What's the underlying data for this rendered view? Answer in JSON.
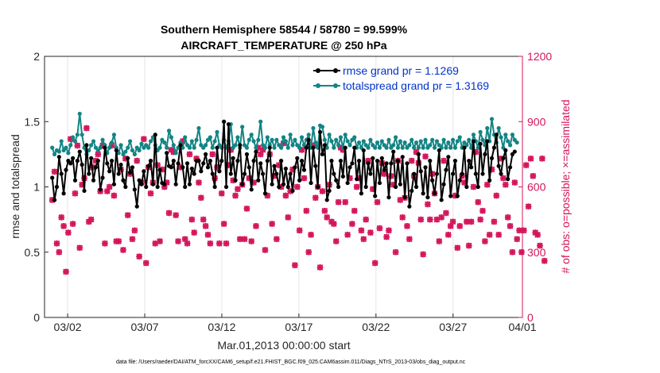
{
  "chart_data": {
    "type": "line",
    "title": "Southern Hemisphere 58544 / 58780 = 99.599%",
    "subtitle": "AIRCRAFT_TEMPERATURE @ 250 hPa",
    "xlabel": "Mar.01,2013 00:00:00 start",
    "ylabel_left": "rmse and totalspread",
    "ylabel_right": "# of obs: o=possible; ×=assimilated",
    "footnote": "data file: /Users/raeder/DAI/ATM_forcXX/CAM6_setup/f.e21.FHIST_BGC.f09_025.CAM6assim.011/Diags_NTrS_2013-03/obs_diag_output.nc",
    "xlim": [
      0.5,
      31.5
    ],
    "ylim_left": [
      0,
      2
    ],
    "ylim_right": [
      0,
      1200
    ],
    "xtick_labels": [
      "03/02",
      "03/07",
      "03/12",
      "03/17",
      "03/22",
      "03/27",
      "04/01"
    ],
    "xtick_values": [
      2,
      7,
      12,
      17,
      22,
      27,
      32
    ],
    "ytick_labels_left": [
      "0",
      "0.5",
      "1",
      "1.5",
      "2"
    ],
    "ytick_values_left": [
      0,
      0.5,
      1,
      1.5,
      2
    ],
    "ytick_labels_right": [
      "0",
      "300",
      "600",
      "900",
      "1200"
    ],
    "ytick_values_right": [
      0,
      300,
      600,
      900,
      1200
    ],
    "grid": "x-only",
    "legend_position": "top-right",
    "colors": {
      "rmse": "#000000",
      "spread": "#138484",
      "obs": "#d4145a",
      "title": "#000000",
      "legend_text": "#0033cc"
    },
    "series": [
      {
        "name": "rmse grand pr = 1.1269",
        "axis": "left",
        "values": [
          1.07,
          0.9,
          1.0,
          1.23,
          1.1,
          0.95,
          1.13,
          1.2,
          1.18,
          1.22,
          1.05,
          1.2,
          1.27,
          1.17,
          0.97,
          1.32,
          1.1,
          1.22,
          1.05,
          1.15,
          1.2,
          0.98,
          1.07,
          1.3,
          1.18,
          1.12,
          1.2,
          1.02,
          1.28,
          1.1,
          1.17,
          1.05,
          1.0,
          1.22,
          1.11,
          1.15,
          0.98,
          0.85,
          1.05,
          1.02,
          1.12,
          1.0,
          1.16,
          1.2,
          1.02,
          1.4,
          1.0,
          1.13,
          1.03,
          1.02,
          1.26,
          1.16,
          1.15,
          1.2,
          1.02,
          1.18,
          1.32,
          1.15,
          1.0,
          1.18,
          1.02,
          1.14,
          1.1,
          1.2,
          1.2,
          1.12,
          1.18,
          1.25,
          1.15,
          1.2,
          1.1,
          1.0,
          1.3,
          1.12,
          1.2,
          1.5,
          1.0,
          1.48,
          1.1,
          1.22,
          1.05,
          1.2,
          1.32,
          1.02,
          1.1,
          1.25,
          1.15,
          0.98,
          1.2,
          1.27,
          1.05,
          1.18,
          1.1,
          0.95,
          1.2,
          1.3,
          1.02,
          1.16,
          1.1,
          1.0,
          1.2,
          1.02,
          1.14,
          1.0,
          1.1,
          0.97,
          1.15,
          1.22,
          1.05,
          1.2,
          1.13,
          1.3,
          1.36,
          1.03,
          1.3,
          1.16,
          1.0,
          1.42,
          1.25,
          1.32,
          0.9,
          0.97,
          1.2,
          1.1,
          1.05,
          1.0,
          1.2,
          1.08,
          1.3,
          1.03,
          1.15,
          1.18,
          1.3,
          1.06,
          1.2,
          0.95,
          1.28,
          1.0,
          1.18,
          1.1,
          1.22,
          0.93,
          1.2,
          1.03,
          1.22,
          1.13,
          1.18,
          0.92,
          1.18,
          1.27,
          1.0,
          1.2,
          1.02,
          1.23,
          0.92,
          1.18,
          0.85,
          0.97,
          1.1,
          1.0,
          1.25,
          1.12,
          0.95,
          1.15,
          0.92,
          1.2,
          1.05,
          0.95,
          1.1,
          1.28,
          0.9,
          1.02,
          1.13,
          1.23,
          0.93,
          1.1,
          1.2,
          0.93,
          1.05,
          1.1,
          1.3,
          1.0,
          1.2,
          1.15,
          1.35,
          1.1,
          1.0,
          1.33,
          1.1,
          1.25,
          1.35,
          1.05,
          1.22,
          1.3,
          1.4,
          1.16,
          1.1,
          1.22,
          1.28,
          1.06,
          1.15,
          1.25,
          1.27
        ]
      },
      {
        "name": "totalspread grand pr = 1.3169",
        "axis": "left",
        "values": [
          1.3,
          1.25,
          1.28,
          1.27,
          1.35,
          1.28,
          1.3,
          1.26,
          1.32,
          1.38,
          1.35,
          1.4,
          1.56,
          1.4,
          1.3,
          1.25,
          1.28,
          1.32,
          1.35,
          1.3,
          1.28,
          1.3,
          1.36,
          1.32,
          1.26,
          1.3,
          1.34,
          1.4,
          1.3,
          1.26,
          1.32,
          1.25,
          1.27,
          1.3,
          1.35,
          1.28,
          1.25,
          1.3,
          1.28,
          1.33,
          1.3,
          1.32,
          1.3,
          1.35,
          1.38,
          1.32,
          1.28,
          1.3,
          1.36,
          1.34,
          1.3,
          1.43,
          1.38,
          1.32,
          1.26,
          1.3,
          1.34,
          1.3,
          1.38,
          1.32,
          1.3,
          1.35,
          1.3,
          1.36,
          1.45,
          1.32,
          1.3,
          1.32,
          1.36,
          1.38,
          1.3,
          1.35,
          1.42,
          1.32,
          1.3,
          1.36,
          1.3,
          1.35,
          1.48,
          1.3,
          1.32,
          1.38,
          1.3,
          1.46,
          1.32,
          1.3,
          1.36,
          1.4,
          1.35,
          1.3,
          1.36,
          1.5,
          1.32,
          1.3,
          1.38,
          1.32,
          1.36,
          1.3,
          1.36,
          1.32,
          1.3,
          1.38,
          1.35,
          1.3,
          1.4,
          1.32,
          1.36,
          1.32,
          1.3,
          1.38,
          1.32,
          1.36,
          1.4,
          1.3,
          1.45,
          1.34,
          1.3,
          1.47,
          1.46,
          1.36,
          1.3,
          1.4,
          1.35,
          1.3,
          1.36,
          1.32,
          1.38,
          1.3,
          1.4,
          1.35,
          1.32,
          1.36,
          1.38,
          1.3,
          1.34,
          1.3,
          1.35,
          1.32,
          1.3,
          1.36,
          1.32,
          1.3,
          1.34,
          1.3,
          1.35,
          1.32,
          1.3,
          1.36,
          1.3,
          1.32,
          1.38,
          1.3,
          1.35,
          1.3,
          1.34,
          1.3,
          1.32,
          1.36,
          1.3,
          1.34,
          1.3,
          1.35,
          1.3,
          1.36,
          1.3,
          1.32,
          1.36,
          1.3,
          1.35,
          1.32,
          1.3,
          1.36,
          1.3,
          1.34,
          1.3,
          1.36,
          1.3,
          1.35,
          1.38,
          1.3,
          1.34,
          1.32,
          1.36,
          1.3,
          1.4,
          1.35,
          1.3,
          1.42,
          1.36,
          1.32,
          1.45,
          1.35,
          1.52,
          1.4,
          1.34,
          1.45,
          1.38,
          1.3,
          1.4,
          1.35,
          1.32,
          1.4,
          1.36,
          1.34
        ]
      },
      {
        "name": "# of obs assimilated",
        "axis": "right",
        "values": [
          540,
          670,
          340,
          300,
          460,
          420,
          210,
          390,
          820,
          430,
          570,
          790,
          320,
          610,
          640,
          870,
          440,
          450,
          690,
          720,
          750,
          580,
          790,
          340,
          580,
          600,
          790,
          560,
          350,
          350,
          680,
          310,
          730,
          470,
          660,
          360,
          400,
          720,
          280,
          620,
          820,
          250,
          690,
          570,
          620,
          340,
          700,
          350,
          680,
          600,
          620,
          480,
          770,
          760,
          470,
          350,
          690,
          810,
          360,
          340,
          750,
          450,
          390,
          730,
          620,
          550,
          450,
          420,
          380,
          340,
          750,
          640,
          690,
          340,
          570,
          430,
          340,
          700,
          770,
          630,
          560,
          590,
          360,
          610,
          360,
          500,
          640,
          350,
          620,
          420,
          780,
          750,
          770,
          310,
          560,
          750,
          430,
          650,
          360,
          700,
          600,
          800,
          560,
          460,
          580,
          680,
          240,
          600,
          400,
          770,
          640,
          490,
          300,
          380,
          790,
          550,
          600,
          230,
          580,
          490,
          460,
          610,
          440,
          430,
          350,
          530,
          780,
          770,
          530,
          380,
          640,
          430,
          490,
          600,
          640,
          400,
          360,
          450,
          720,
          390,
          590,
          250,
          530,
          410,
          710,
          660,
          370,
          400,
          650,
          610,
          300,
          720,
          540,
          460,
          550,
          420,
          360,
          720,
          650,
          760,
          710,
          450,
          290,
          740,
          520,
          450,
          660,
          570,
          450,
          350,
          460,
          720,
          480,
          380,
          420,
          440,
          560,
          320,
          420,
          650,
          620,
          440,
          330,
          440,
          600,
          760,
          530,
          450,
          490,
          350,
          610,
          380,
          680,
          440,
          560,
          380,
          730,
          640,
          610,
          460,
          420,
          300,
          620,
          360,
          400,
          300,
          400,
          700,
          510,
          730,
          650,
          390,
          380,
          330,
          730,
          260
        ]
      },
      {
        "name": "# of obs possible",
        "axis": "right",
        "values": [
          540,
          670,
          340,
          300,
          460,
          420,
          210,
          390,
          820,
          430,
          570,
          790,
          320,
          610,
          640,
          870,
          440,
          450,
          690,
          720,
          750,
          580,
          790,
          340,
          580,
          600,
          790,
          560,
          350,
          350,
          680,
          310,
          730,
          470,
          660,
          360,
          400,
          720,
          280,
          620,
          820,
          250,
          690,
          570,
          620,
          340,
          700,
          350,
          680,
          600,
          620,
          480,
          770,
          760,
          470,
          350,
          690,
          810,
          360,
          340,
          750,
          450,
          390,
          730,
          620,
          550,
          450,
          420,
          380,
          340,
          750,
          640,
          690,
          340,
          570,
          430,
          340,
          700,
          770,
          630,
          560,
          590,
          360,
          610,
          360,
          500,
          640,
          350,
          620,
          420,
          780,
          750,
          770,
          310,
          560,
          750,
          430,
          650,
          360,
          700,
          600,
          800,
          560,
          460,
          580,
          680,
          240,
          600,
          400,
          770,
          640,
          490,
          300,
          380,
          790,
          550,
          600,
          230,
          580,
          490,
          460,
          610,
          440,
          430,
          350,
          530,
          780,
          770,
          530,
          380,
          640,
          430,
          490,
          600,
          640,
          400,
          360,
          450,
          720,
          390,
          590,
          250,
          530,
          410,
          710,
          660,
          370,
          400,
          650,
          610,
          300,
          720,
          540,
          460,
          550,
          420,
          360,
          720,
          650,
          760,
          710,
          450,
          290,
          740,
          520,
          450,
          660,
          570,
          450,
          350,
          460,
          720,
          480,
          380,
          420,
          440,
          560,
          320,
          420,
          650,
          620,
          440,
          330,
          440,
          600,
          760,
          530,
          450,
          490,
          350,
          610,
          380,
          680,
          440,
          560,
          380,
          730,
          640,
          610,
          460,
          420,
          300,
          620,
          360,
          400,
          300,
          400,
          700,
          510,
          730,
          650,
          390,
          380,
          330,
          730,
          260
        ]
      }
    ]
  }
}
